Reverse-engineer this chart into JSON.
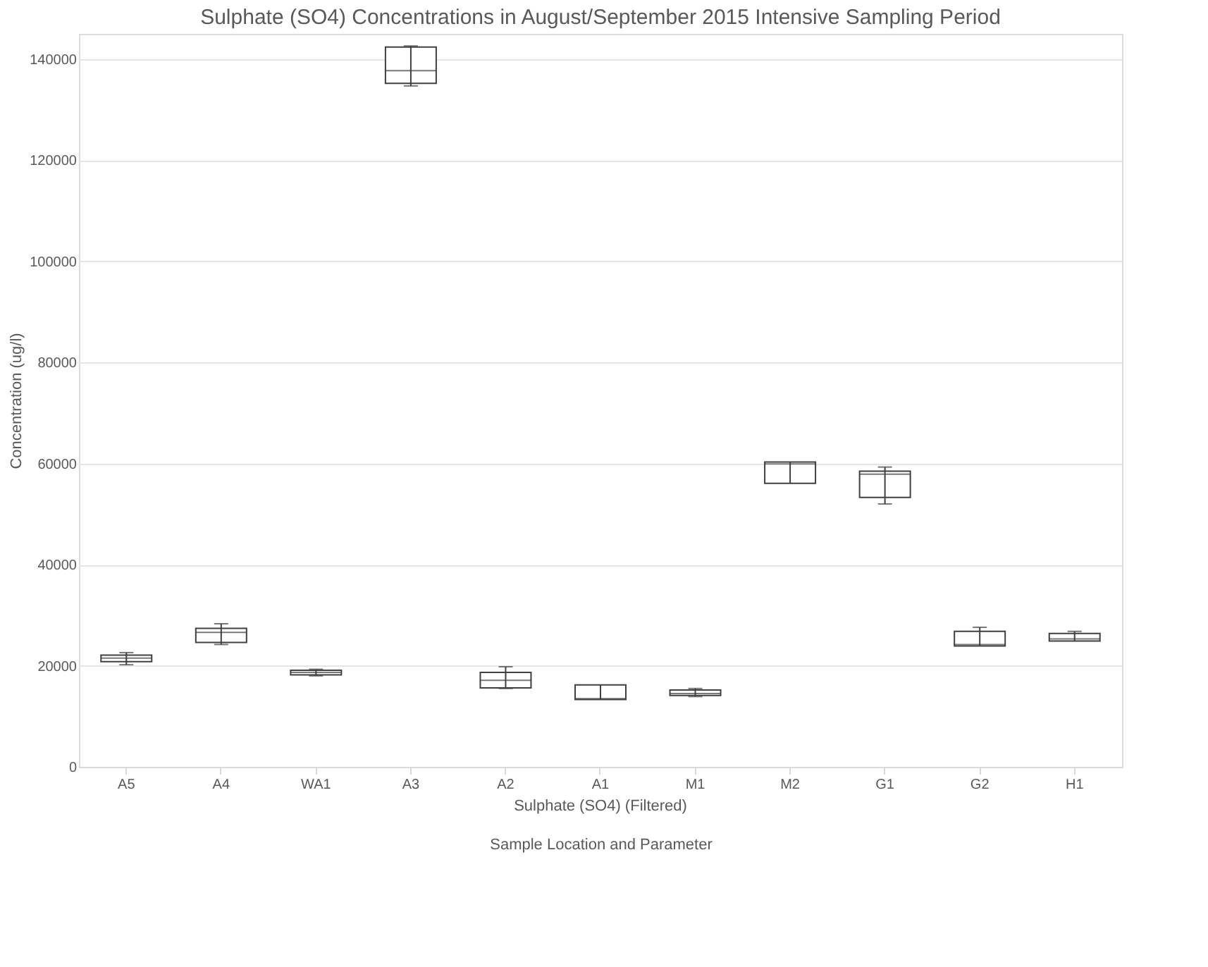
{
  "chart_data": {
    "type": "box",
    "title": "Sulphate (SO4) Concentrations in August/September 2015 Intensive Sampling Period",
    "ylabel": "Concentration (ug/l)",
    "xlabel": "Sample Location and Parameter",
    "annotations": [
      "Sulphate (SO4) (Filtered)"
    ],
    "categories": [
      "A5",
      "A4",
      "WA1",
      "A3",
      "A2",
      "A1",
      "M1",
      "M2",
      "G1",
      "G2",
      "H1"
    ],
    "boxes": [
      {
        "low": 20200,
        "q1": 20800,
        "median": 21500,
        "q3": 22100,
        "high": 22600
      },
      {
        "low": 24200,
        "q1": 24600,
        "median": 26600,
        "q3": 27400,
        "high": 28300
      },
      {
        "low": 18000,
        "q1": 18200,
        "median": 18700,
        "q3": 19100,
        "high": 19300
      },
      {
        "low": 134700,
        "q1": 135200,
        "median": 137700,
        "q3": 142400,
        "high": 142600
      },
      {
        "low": 15500,
        "q1": 15600,
        "median": 17100,
        "q3": 18700,
        "high": 19800
      },
      {
        "low": 13300,
        "q1": 13300,
        "median": 13500,
        "q3": 16200,
        "high": 16200
      },
      {
        "low": 13900,
        "q1": 14100,
        "median": 14500,
        "q3": 15200,
        "high": 15500
      },
      {
        "low": 56100,
        "q1": 56100,
        "median": 59900,
        "q3": 60300,
        "high": 60300
      },
      {
        "low": 52000,
        "q1": 53300,
        "median": 57900,
        "q3": 58500,
        "high": 59300
      },
      {
        "low": 23900,
        "q1": 23900,
        "median": 24200,
        "q3": 26800,
        "high": 27600
      },
      {
        "low": 24900,
        "q1": 24900,
        "median": 25300,
        "q3": 26400,
        "high": 26800
      }
    ],
    "color": "#404040",
    "ylim": [
      0,
      145000
    ],
    "yticks": [
      0,
      20000,
      40000,
      60000,
      80000,
      100000,
      120000,
      140000
    ],
    "grid": "y"
  }
}
